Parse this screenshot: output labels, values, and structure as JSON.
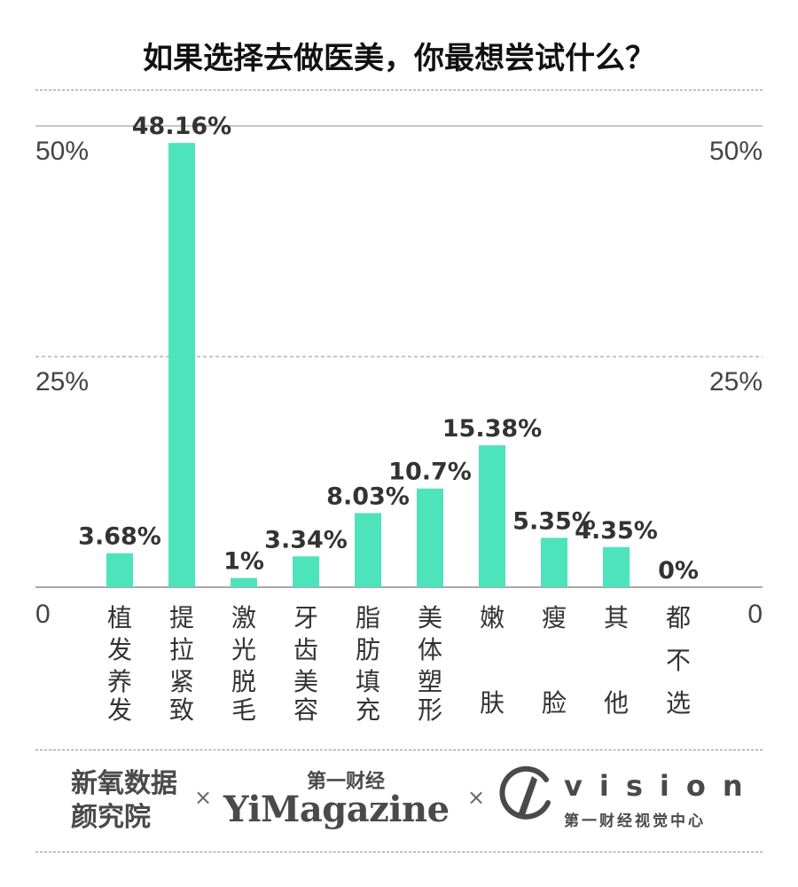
{
  "title": "如果选择去做医美，你最想尝试什么？",
  "chart_data": {
    "type": "bar",
    "title": "如果选择去做医美，你最想尝试什么？",
    "categories": [
      "植发养发",
      "提拉紧致",
      "激光脱毛",
      "牙齿美容",
      "脂肪填充",
      "美体塑形",
      "嫩肤",
      "瘦脸",
      "其他",
      "都不选"
    ],
    "values": [
      3.68,
      48.16,
      1,
      3.34,
      8.03,
      10.7,
      15.38,
      5.35,
      4.35,
      0
    ],
    "value_labels": [
      "3.68%",
      "48.16%",
      "1%",
      "3.34%",
      "8.03%",
      "10.7%",
      "15.38%",
      "5.35%",
      "4.35%",
      "0%"
    ],
    "ylim": [
      0,
      50
    ],
    "yticks": [
      0,
      25,
      50
    ],
    "ytick_labels": [
      "0",
      "25%",
      "50%"
    ],
    "bar_color": "#4de3bb",
    "grid": true
  },
  "footer": {
    "brand1": "新氧数据颜究院",
    "cross": "×",
    "brand2_top": "第一财经",
    "brand2": "YiMagazine",
    "brand3": "vision",
    "brand3_sub": "第一财经视觉中心"
  }
}
